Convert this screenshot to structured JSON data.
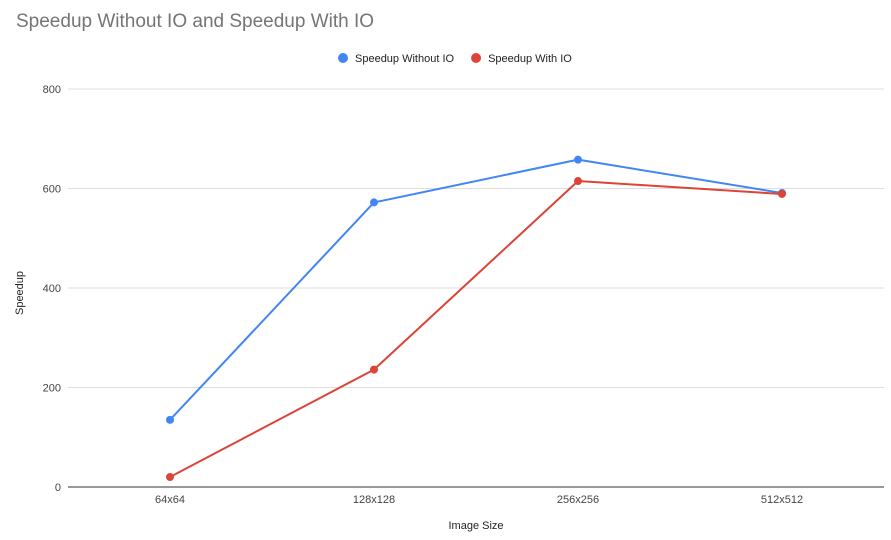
{
  "chart_data": {
    "type": "line",
    "title": "Speedup Without IO and Speedup With IO",
    "xlabel": "Image Size",
    "ylabel": "Speedup",
    "categories": [
      "64x64",
      "128x128",
      "256x256",
      "512x512"
    ],
    "ylim": [
      0,
      800
    ],
    "yticks": [
      0,
      200,
      400,
      600,
      800
    ],
    "grid": true,
    "legend_position": "top",
    "series": [
      {
        "name": "Speedup Without IO",
        "color": "#4285F4",
        "values": [
          135,
          572,
          658,
          591
        ]
      },
      {
        "name": "Speedup With IO",
        "color": "#DB4437",
        "values": [
          20,
          236,
          615,
          589
        ]
      }
    ]
  }
}
